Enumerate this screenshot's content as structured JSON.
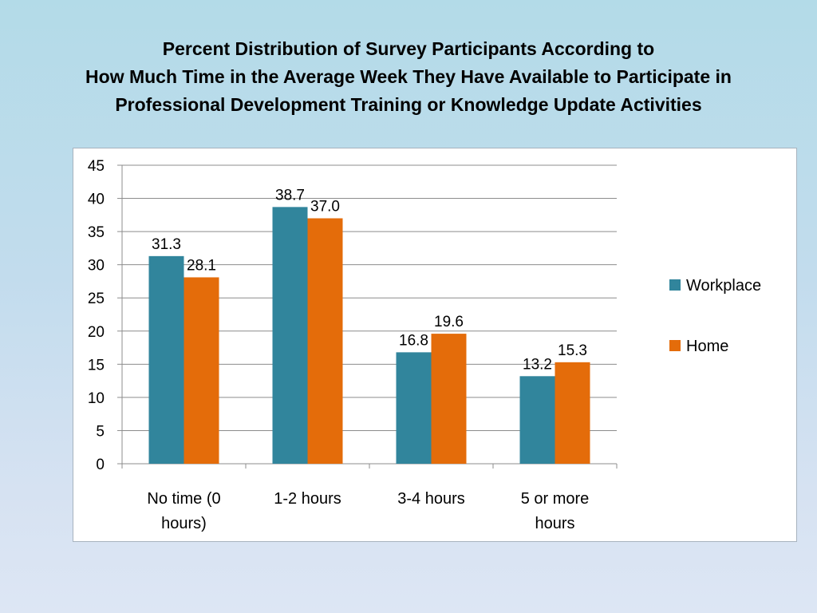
{
  "title": {
    "lines": [
      "Percent Distribution of Survey Participants According to",
      "How Much Time in the Average Week They Have Available to Participate in",
      "Professional Development Training or Knowledge Update Activities"
    ]
  },
  "chart_data": {
    "type": "bar",
    "title": "Percent Distribution of Survey Participants According to How Much Time in the Average Week They Have Available to Participate in Professional Development Training or Knowledge Update Activities",
    "categories": [
      "No time (0 hours)",
      "1-2 hours",
      "3-4 hours",
      "5 or more hours"
    ],
    "category_label_lines": [
      [
        "No time (0",
        "hours)"
      ],
      [
        "1-2 hours"
      ],
      [
        "3-4 hours"
      ],
      [
        "5 or more",
        "hours"
      ]
    ],
    "series": [
      {
        "name": "Workplace",
        "values": [
          31.3,
          38.7,
          16.8,
          13.2
        ],
        "color": "#31859c"
      },
      {
        "name": "Home",
        "values": [
          28.1,
          37.0,
          19.6,
          15.3
        ],
        "color": "#e46c0a"
      }
    ],
    "data_labels": [
      [
        "31.3",
        "38.7",
        "16.8",
        "13.2"
      ],
      [
        "28.1",
        "37.0",
        "19.6",
        "15.3"
      ]
    ],
    "xlabel": "",
    "ylabel": "",
    "ylim": [
      0,
      45
    ],
    "yticks": [
      0,
      5,
      10,
      15,
      20,
      25,
      30,
      35,
      40,
      45
    ],
    "grid": true,
    "legend": "right"
  }
}
